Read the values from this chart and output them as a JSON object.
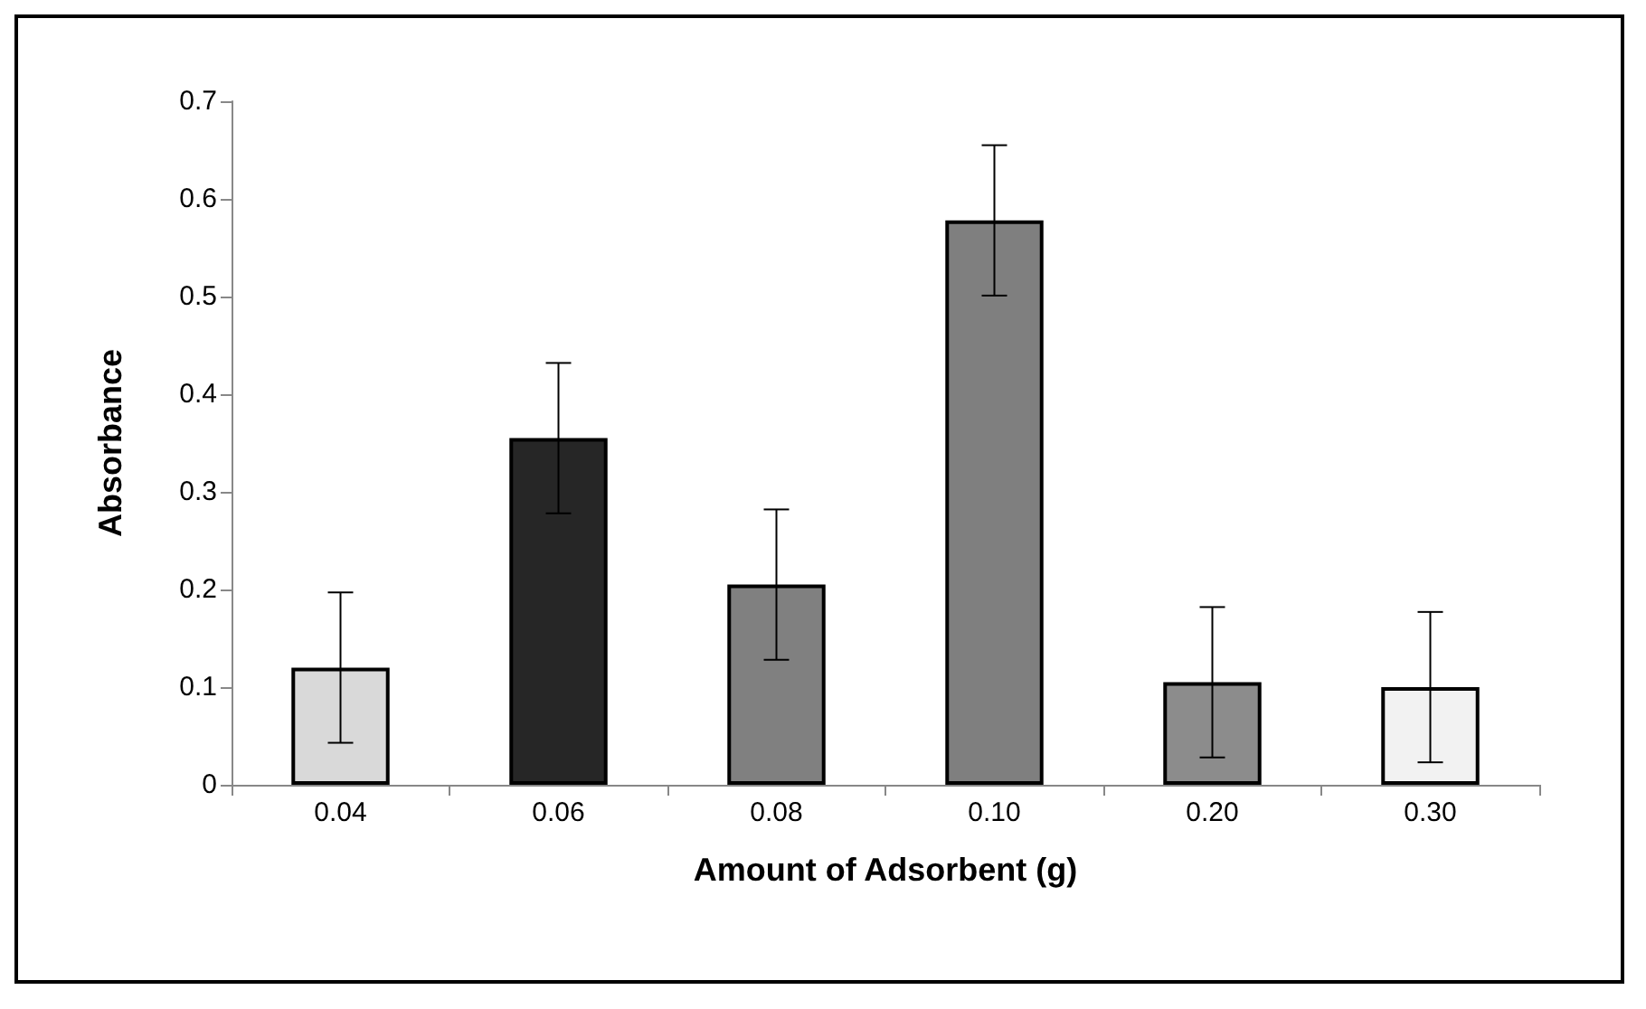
{
  "chart_data": {
    "type": "bar",
    "xlabel": "Amount of Adsorbent (g)",
    "ylabel": "Absorbance",
    "categories": [
      "0.04",
      "0.06",
      "0.08",
      "0.10",
      "0.20",
      "0.30"
    ],
    "values": [
      0.12,
      0.355,
      0.205,
      0.578,
      0.105,
      0.1
    ],
    "errors": [
      0.077,
      0.077,
      0.077,
      0.077,
      0.077,
      0.077
    ],
    "colors": [
      "#d9d9d9",
      "#262626",
      "#808080",
      "#7f7f7f",
      "#8c8c8c",
      "#f2f2f2"
    ],
    "ylim": [
      0,
      0.7
    ],
    "yticks": [
      0,
      0.1,
      0.2,
      0.3,
      0.4,
      0.5,
      0.6,
      0.7
    ],
    "grid": false
  }
}
